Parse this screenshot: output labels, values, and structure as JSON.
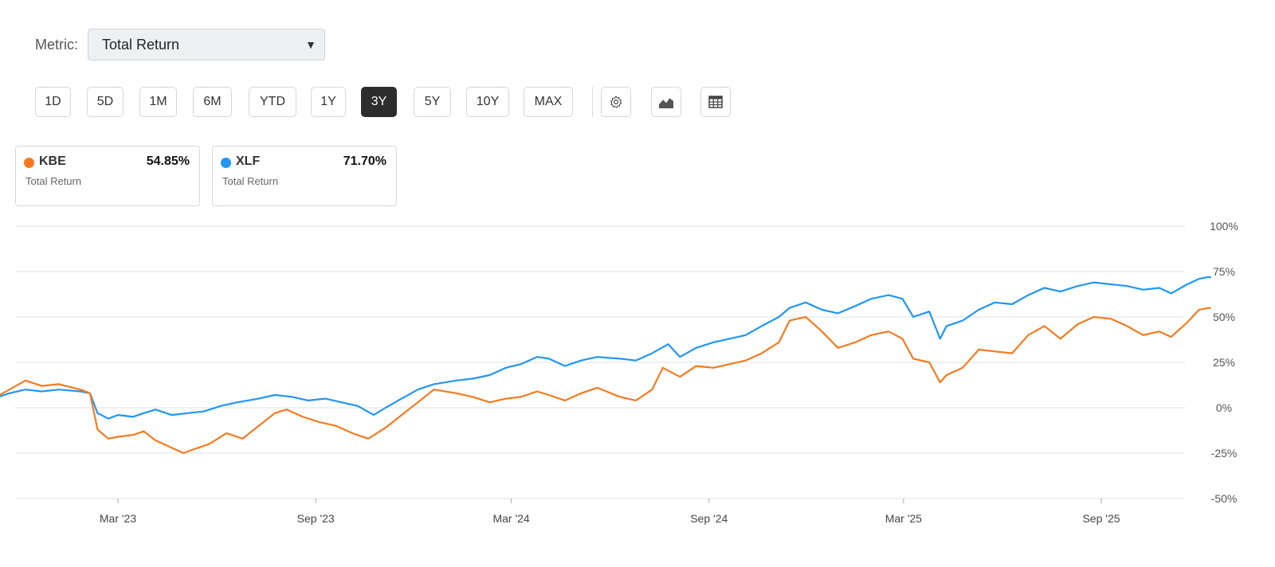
{
  "metric": {
    "label": "Metric:",
    "selected": "Total Return"
  },
  "ranges": [
    "1D",
    "5D",
    "1M",
    "6M",
    "YTD",
    "1Y",
    "3Y",
    "5Y",
    "10Y",
    "MAX"
  ],
  "active_range": "3Y",
  "tools": [
    {
      "icon": "gear-icon"
    },
    {
      "icon": "area-chart-icon"
    },
    {
      "icon": "table-icon"
    }
  ],
  "cards": [
    {
      "ticker": "KBE",
      "value": "54.85%",
      "sublabel": "Total Return",
      "color": "#f47b20"
    },
    {
      "ticker": "XLF",
      "value": "71.70%",
      "sublabel": "Total Return",
      "color": "#2196f3"
    }
  ],
  "chart_data": {
    "type": "line",
    "y_ticks": [
      "100%",
      "75%",
      "50%",
      "25%",
      "0%",
      "-25%",
      "-50%"
    ],
    "y_tick_values": [
      100,
      75,
      50,
      25,
      0,
      -25,
      -50
    ],
    "ylim": [
      -50,
      100
    ],
    "x_ticks": [
      "Mar '23",
      "Sep '23",
      "Mar '24",
      "Sep '24",
      "Mar '25",
      "Sep '25"
    ],
    "x_tick_dates": [
      "2023-03-01",
      "2023-09-01",
      "2024-03-01",
      "2024-09-01",
      "2025-03-01",
      "2025-09-01"
    ],
    "grid": true,
    "series": [
      {
        "name": "XLF",
        "color": "#2196f3",
        "points": [
          [
            "2022-10-07",
            0
          ],
          [
            "2022-10-20",
            3
          ],
          [
            "2022-11-05",
            5
          ],
          [
            "2022-11-20",
            8
          ],
          [
            "2022-12-05",
            10
          ],
          [
            "2022-12-20",
            9
          ],
          [
            "2023-01-05",
            10
          ],
          [
            "2023-01-25",
            9
          ],
          [
            "2023-02-03",
            8
          ],
          [
            "2023-02-10",
            -3
          ],
          [
            "2023-02-20",
            -6
          ],
          [
            "2023-03-01",
            -4
          ],
          [
            "2023-03-15",
            -5
          ],
          [
            "2023-03-25",
            -3
          ],
          [
            "2023-04-05",
            -1
          ],
          [
            "2023-04-20",
            -4
          ],
          [
            "2023-05-05",
            -3
          ],
          [
            "2023-05-20",
            -2
          ],
          [
            "2023-06-05",
            1
          ],
          [
            "2023-06-20",
            3
          ],
          [
            "2023-07-10",
            5
          ],
          [
            "2023-07-25",
            7
          ],
          [
            "2023-08-10",
            6
          ],
          [
            "2023-08-25",
            4
          ],
          [
            "2023-09-10",
            5
          ],
          [
            "2023-09-25",
            3
          ],
          [
            "2023-10-10",
            1
          ],
          [
            "2023-10-25",
            -4
          ],
          [
            "2023-11-05",
            0
          ],
          [
            "2023-11-20",
            5
          ],
          [
            "2023-12-05",
            10
          ],
          [
            "2023-12-20",
            13
          ],
          [
            "2024-01-10",
            15
          ],
          [
            "2024-01-25",
            16
          ],
          [
            "2024-02-10",
            18
          ],
          [
            "2024-02-25",
            22
          ],
          [
            "2024-03-10",
            24
          ],
          [
            "2024-03-25",
            28
          ],
          [
            "2024-04-05",
            27
          ],
          [
            "2024-04-20",
            23
          ],
          [
            "2024-05-05",
            26
          ],
          [
            "2024-05-20",
            28
          ],
          [
            "2024-06-10",
            27
          ],
          [
            "2024-06-25",
            26
          ],
          [
            "2024-07-10",
            30
          ],
          [
            "2024-07-25",
            35
          ],
          [
            "2024-08-05",
            28
          ],
          [
            "2024-08-20",
            33
          ],
          [
            "2024-09-05",
            36
          ],
          [
            "2024-09-20",
            38
          ],
          [
            "2024-10-05",
            40
          ],
          [
            "2024-10-20",
            45
          ],
          [
            "2024-11-05",
            50
          ],
          [
            "2024-11-15",
            55
          ],
          [
            "2024-11-30",
            58
          ],
          [
            "2024-12-15",
            54
          ],
          [
            "2024-12-30",
            52
          ],
          [
            "2025-01-15",
            56
          ],
          [
            "2025-01-30",
            60
          ],
          [
            "2025-02-15",
            62
          ],
          [
            "2025-02-28",
            60
          ],
          [
            "2025-03-10",
            50
          ],
          [
            "2025-03-25",
            53
          ],
          [
            "2025-04-04",
            38
          ],
          [
            "2025-04-10",
            45
          ],
          [
            "2025-04-25",
            48
          ],
          [
            "2025-05-10",
            54
          ],
          [
            "2025-05-25",
            58
          ],
          [
            "2025-06-10",
            57
          ],
          [
            "2025-06-25",
            62
          ],
          [
            "2025-07-10",
            66
          ],
          [
            "2025-07-25",
            64
          ],
          [
            "2025-08-10",
            67
          ],
          [
            "2025-08-25",
            69
          ],
          [
            "2025-09-10",
            68
          ],
          [
            "2025-09-25",
            67
          ],
          [
            "2025-10-10",
            65
          ],
          [
            "2025-10-25",
            66
          ],
          [
            "2025-11-05",
            63
          ],
          [
            "2025-11-20",
            68
          ],
          [
            "2025-12-01",
            71
          ],
          [
            "2025-12-10",
            72
          ],
          [
            "2025-12-12",
            71.7
          ]
        ]
      },
      {
        "name": "KBE",
        "color": "#f47b20",
        "points": [
          [
            "2022-10-07",
            0
          ],
          [
            "2022-10-20",
            3
          ],
          [
            "2022-11-05",
            5
          ],
          [
            "2022-11-20",
            10
          ],
          [
            "2022-12-05",
            15
          ],
          [
            "2022-12-20",
            12
          ],
          [
            "2023-01-05",
            13
          ],
          [
            "2023-01-25",
            10
          ],
          [
            "2023-02-03",
            8
          ],
          [
            "2023-02-10",
            -12
          ],
          [
            "2023-02-20",
            -17
          ],
          [
            "2023-03-01",
            -16
          ],
          [
            "2023-03-15",
            -15
          ],
          [
            "2023-03-25",
            -13
          ],
          [
            "2023-04-05",
            -18
          ],
          [
            "2023-04-20",
            -22
          ],
          [
            "2023-05-01",
            -25
          ],
          [
            "2023-05-10",
            -23
          ],
          [
            "2023-05-25",
            -20
          ],
          [
            "2023-06-10",
            -14
          ],
          [
            "2023-06-25",
            -17
          ],
          [
            "2023-07-10",
            -10
          ],
          [
            "2023-07-25",
            -3
          ],
          [
            "2023-08-05",
            -1
          ],
          [
            "2023-08-20",
            -5
          ],
          [
            "2023-09-05",
            -8
          ],
          [
            "2023-09-20",
            -10
          ],
          [
            "2023-10-05",
            -14
          ],
          [
            "2023-10-20",
            -17
          ],
          [
            "2023-11-05",
            -11
          ],
          [
            "2023-11-20",
            -4
          ],
          [
            "2023-12-05",
            3
          ],
          [
            "2023-12-20",
            10
          ],
          [
            "2024-01-10",
            8
          ],
          [
            "2024-01-25",
            6
          ],
          [
            "2024-02-10",
            3
          ],
          [
            "2024-02-25",
            5
          ],
          [
            "2024-03-10",
            6
          ],
          [
            "2024-03-25",
            9
          ],
          [
            "2024-04-05",
            7
          ],
          [
            "2024-04-20",
            4
          ],
          [
            "2024-05-05",
            8
          ],
          [
            "2024-05-20",
            11
          ],
          [
            "2024-06-10",
            6
          ],
          [
            "2024-06-25",
            4
          ],
          [
            "2024-07-10",
            10
          ],
          [
            "2024-07-20",
            22
          ],
          [
            "2024-08-05",
            17
          ],
          [
            "2024-08-20",
            23
          ],
          [
            "2024-09-05",
            22
          ],
          [
            "2024-09-20",
            24
          ],
          [
            "2024-10-05",
            26
          ],
          [
            "2024-10-20",
            30
          ],
          [
            "2024-11-05",
            36
          ],
          [
            "2024-11-15",
            48
          ],
          [
            "2024-11-30",
            50
          ],
          [
            "2024-12-15",
            42
          ],
          [
            "2024-12-30",
            33
          ],
          [
            "2025-01-15",
            36
          ],
          [
            "2025-01-30",
            40
          ],
          [
            "2025-02-15",
            42
          ],
          [
            "2025-02-28",
            38
          ],
          [
            "2025-03-10",
            27
          ],
          [
            "2025-03-25",
            25
          ],
          [
            "2025-04-04",
            14
          ],
          [
            "2025-04-10",
            18
          ],
          [
            "2025-04-25",
            22
          ],
          [
            "2025-05-10",
            32
          ],
          [
            "2025-05-25",
            31
          ],
          [
            "2025-06-10",
            30
          ],
          [
            "2025-06-25",
            40
          ],
          [
            "2025-07-10",
            45
          ],
          [
            "2025-07-25",
            38
          ],
          [
            "2025-08-10",
            46
          ],
          [
            "2025-08-25",
            50
          ],
          [
            "2025-09-10",
            49
          ],
          [
            "2025-09-25",
            45
          ],
          [
            "2025-10-10",
            40
          ],
          [
            "2025-10-25",
            42
          ],
          [
            "2025-11-05",
            39
          ],
          [
            "2025-11-20",
            47
          ],
          [
            "2025-12-01",
            54
          ],
          [
            "2025-12-10",
            55
          ],
          [
            "2025-12-12",
            54.85
          ]
        ]
      }
    ]
  }
}
